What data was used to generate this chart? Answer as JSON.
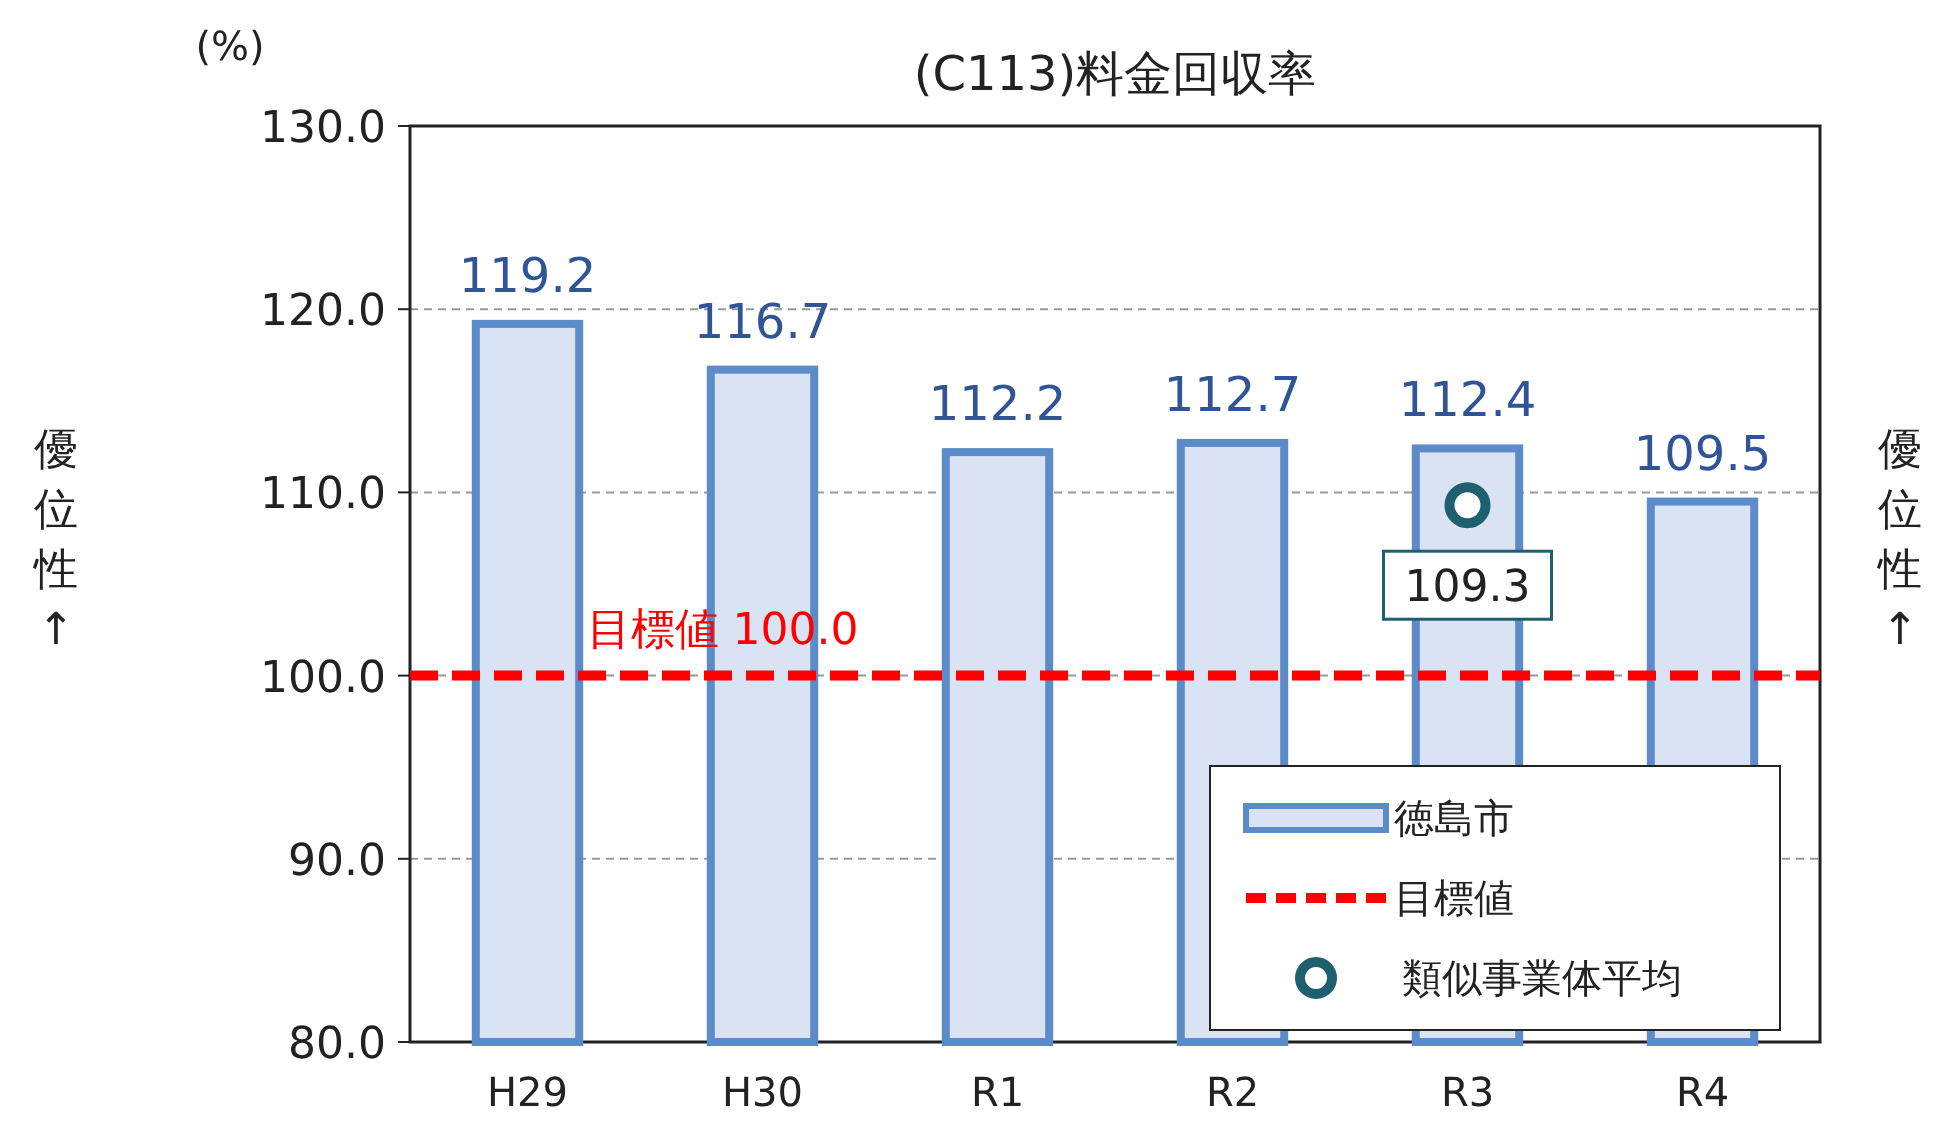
{
  "chart_data": {
    "type": "bar",
    "title": "(C113)料金回収率",
    "ylabel": "(%)",
    "categories": [
      "H29",
      "H30",
      "R1",
      "R2",
      "R3",
      "R4"
    ],
    "series": [
      {
        "name": "徳島市",
        "color": "#dae3f3",
        "values": [
          119.2,
          116.7,
          112.2,
          112.7,
          112.4,
          109.5
        ]
      },
      {
        "name": "類似事業体平均",
        "type": "scatter",
        "color": "#1f6070",
        "x": [
          "R3"
        ],
        "values": [
          109.3
        ],
        "value_labels": [
          "109.3"
        ]
      }
    ],
    "data_labels": true,
    "ref_lines": [
      {
        "axis": "y",
        "value": 100,
        "label": "目標値",
        "color": "#ff0000",
        "line_style": "dashed"
      }
    ],
    "annotations": [
      {
        "text": "目標値 100.0",
        "x": "H30",
        "y": 100
      },
      "優位性↑",
      "優位性↑"
    ],
    "ylim": [
      80,
      130
    ],
    "yticks": [
      {
        "value": 80,
        "label": "80.0"
      },
      {
        "value": 90,
        "label": "90.0"
      },
      {
        "value": 100,
        "label": "100.0"
      },
      {
        "value": 110,
        "label": "110.0"
      },
      {
        "value": 120,
        "label": "120.0"
      },
      {
        "value": 130,
        "label": "130.0"
      }
    ],
    "grid": "y",
    "legend": "bottom right",
    "marker": "circle"
  }
}
